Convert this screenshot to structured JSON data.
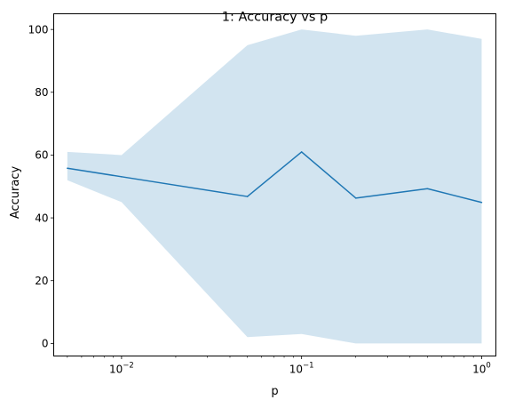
{
  "chart_data": {
    "type": "line",
    "title": "1: Accuracy vs p",
    "xlabel": "p",
    "ylabel": "Accuracy",
    "xscale": "log",
    "xlim": [
      0.0042,
      1.2
    ],
    "ylim": [
      -4,
      105
    ],
    "grid": false,
    "x": [
      0.005,
      0.01,
      0.05,
      0.1,
      0.2,
      0.5,
      1.0
    ],
    "x_ticks": [
      {
        "value": 0.01,
        "base": "10",
        "exp": "−2"
      },
      {
        "value": 0.1,
        "base": "10",
        "exp": "−1"
      },
      {
        "value": 1.0,
        "base": "10",
        "exp": "0"
      }
    ],
    "y_ticks": [
      0,
      20,
      40,
      60,
      80,
      100
    ],
    "series": [
      {
        "values": [
          55.8,
          53.1,
          46.8,
          61.0,
          46.3,
          49.3,
          44.9
        ],
        "lower": [
          52.0,
          45.0,
          2.0,
          3.0,
          0.0,
          0.0,
          0.0
        ],
        "upper": [
          61.0,
          60.0,
          95.0,
          100.0,
          98.0,
          100.0,
          97.0
        ],
        "color": "#1f77b4",
        "band_color": "#1f77b4",
        "band_opacity": 0.2
      }
    ]
  }
}
